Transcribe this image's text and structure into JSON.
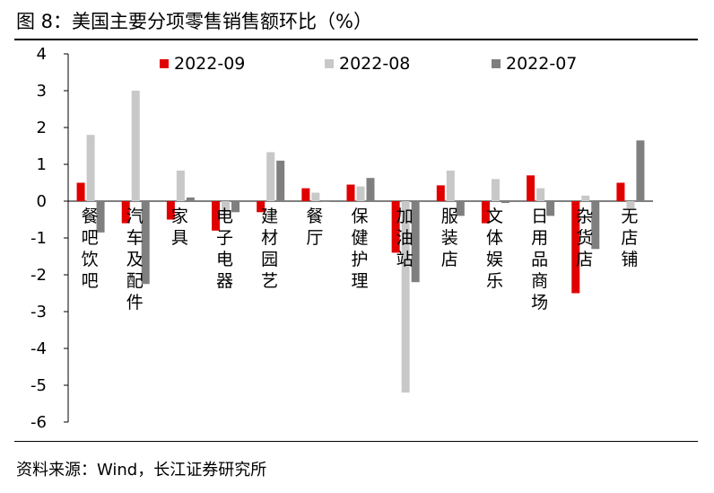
{
  "figure": {
    "title": "图 8：美国主要分项零售销售额环比（%）",
    "source": "资料来源：Wind，长江证券研究所"
  },
  "chart_data": {
    "type": "bar",
    "title": "美国主要分项零售销售额环比（%）",
    "xlabel": "",
    "ylabel": "",
    "ylim": [
      -6,
      4
    ],
    "yticks": [
      -6,
      -5,
      -4,
      -3,
      -2,
      -1,
      0,
      1,
      2,
      3,
      4
    ],
    "categories": [
      "餐吧饮吧",
      "汽车及配件",
      "家具",
      "电子电器",
      "建材园艺",
      "餐厅",
      "保健护理",
      "加油站",
      "服装店",
      "文体娱乐",
      "日用品商场",
      "杂货店",
      "无店铺"
    ],
    "series": [
      {
        "name": "2022-09",
        "color": "#e00000",
        "values": [
          0.5,
          -0.6,
          -0.5,
          -0.8,
          -0.3,
          0.35,
          0.45,
          -1.4,
          0.43,
          -0.6,
          0.7,
          -2.5,
          0.5
        ]
      },
      {
        "name": "2022-08",
        "color": "#c8c8c8",
        "values": [
          1.8,
          3.0,
          0.83,
          -0.3,
          1.33,
          0.23,
          0.4,
          -5.2,
          0.83,
          0.6,
          0.35,
          0.15,
          -0.2
        ]
      },
      {
        "name": "2022-07",
        "color": "#7f7f7f",
        "values": [
          -0.85,
          -2.25,
          0.1,
          -0.3,
          1.1,
          -0.02,
          0.63,
          -2.2,
          -0.4,
          -0.05,
          -0.4,
          -1.3,
          1.65
        ]
      }
    ],
    "legend_position": "top"
  }
}
